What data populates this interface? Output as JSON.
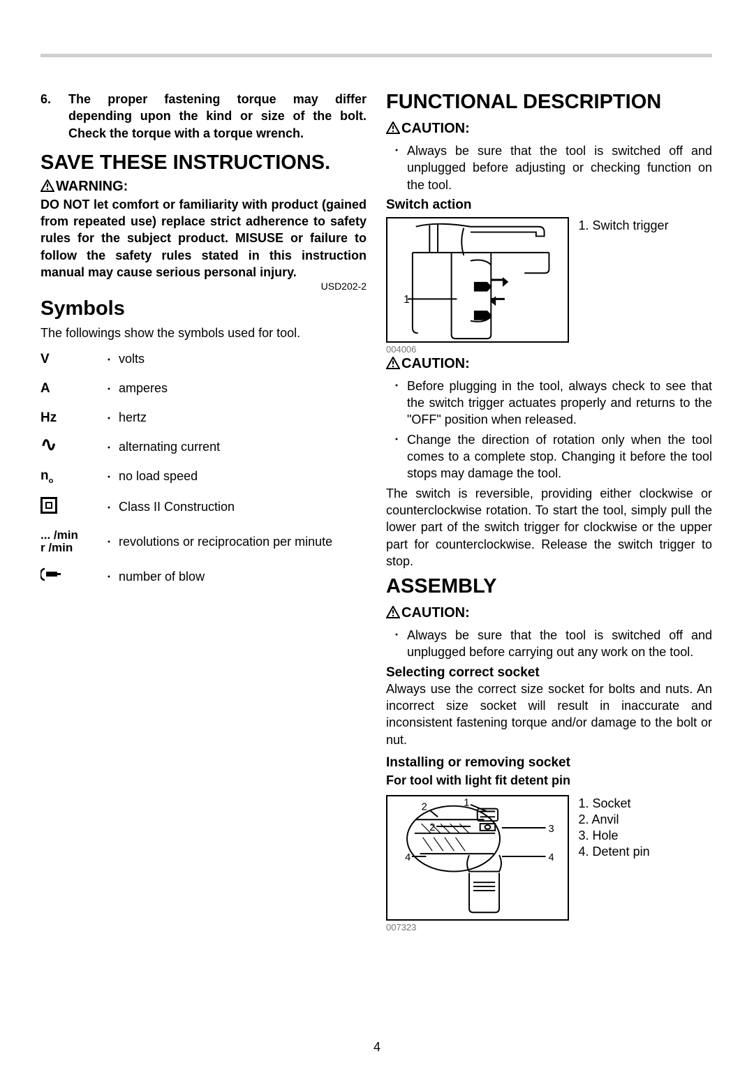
{
  "divider_color": "#cfcfcf",
  "page_number": "4",
  "left": {
    "item6": {
      "num": "6.",
      "text": "The proper fastening torque may differ depending upon the kind or size of the bolt. Check the torque with a torque wrench."
    },
    "save_heading": "SAVE THESE INSTRUCTIONS.",
    "warning_label": "WARNING:",
    "warning_body": "DO NOT let comfort or familiarity with product (gained from repeated use) replace strict adherence to safety rules for the subject product. MISUSE or failure to follow the safety rules stated in this instruction manual may cause serious personal injury.",
    "doc_code": "USD202-2",
    "symbols_heading": "Symbols",
    "symbols_intro": "The followings show the symbols used for tool.",
    "symbols": [
      {
        "sym": "V",
        "desc": "volts",
        "kind": "text"
      },
      {
        "sym": "A",
        "desc": "amperes",
        "kind": "text"
      },
      {
        "sym": "Hz",
        "desc": "hertz",
        "kind": "text"
      },
      {
        "sym": "∿",
        "desc": "alternating current",
        "kind": "ac"
      },
      {
        "sym": "n",
        "sub": "o",
        "desc": "no load speed",
        "kind": "sub"
      },
      {
        "sym": "",
        "desc": "Class II Construction",
        "kind": "box"
      },
      {
        "sym": "... /min",
        "sym2": "r /min",
        "desc": "revolutions or reciprocation per minute",
        "kind": "twoline"
      },
      {
        "sym": "",
        "desc": "number of blow",
        "kind": "hammer"
      }
    ]
  },
  "right": {
    "func_heading": "FUNCTIONAL DESCRIPTION",
    "caution_label": "CAUTION:",
    "caution1": "Always be sure that the tool is switched off and unplugged before adjusting or checking function on the tool.",
    "switch_h": "Switch action",
    "fig1_caption": "004006",
    "fig1_legend": "1. Switch trigger",
    "caution2_items": [
      "Before plugging in the tool, always check to see that the switch trigger actuates properly and returns to the \"OFF\" position when released.",
      "Change the direction of rotation only when the tool comes to a complete stop. Changing it before the tool stops may damage the tool."
    ],
    "switch_body": "The switch is reversible, providing either clockwise or counterclockwise rotation. To start the tool, simply pull the lower part of the switch trigger for clockwise or the upper part for counterclockwise. Release the switch trigger to stop.",
    "assembly_heading": "ASSEMBLY",
    "caution3": "Always be sure that the tool is switched off and unplugged before carrying out any work on the tool.",
    "socket_h": "Selecting correct socket",
    "socket_body": "Always use the correct size socket for bolts and nuts. An incorrect size socket will result in inaccurate and inconsistent fastening torque and/or damage to the bolt or nut.",
    "install_h": "Installing or removing socket",
    "install_sub": "For tool with light fit detent pin",
    "fig2_caption": "007323",
    "fig2_legend": [
      "1. Socket",
      "2. Anvil",
      "3. Hole",
      "4. Detent pin"
    ]
  }
}
